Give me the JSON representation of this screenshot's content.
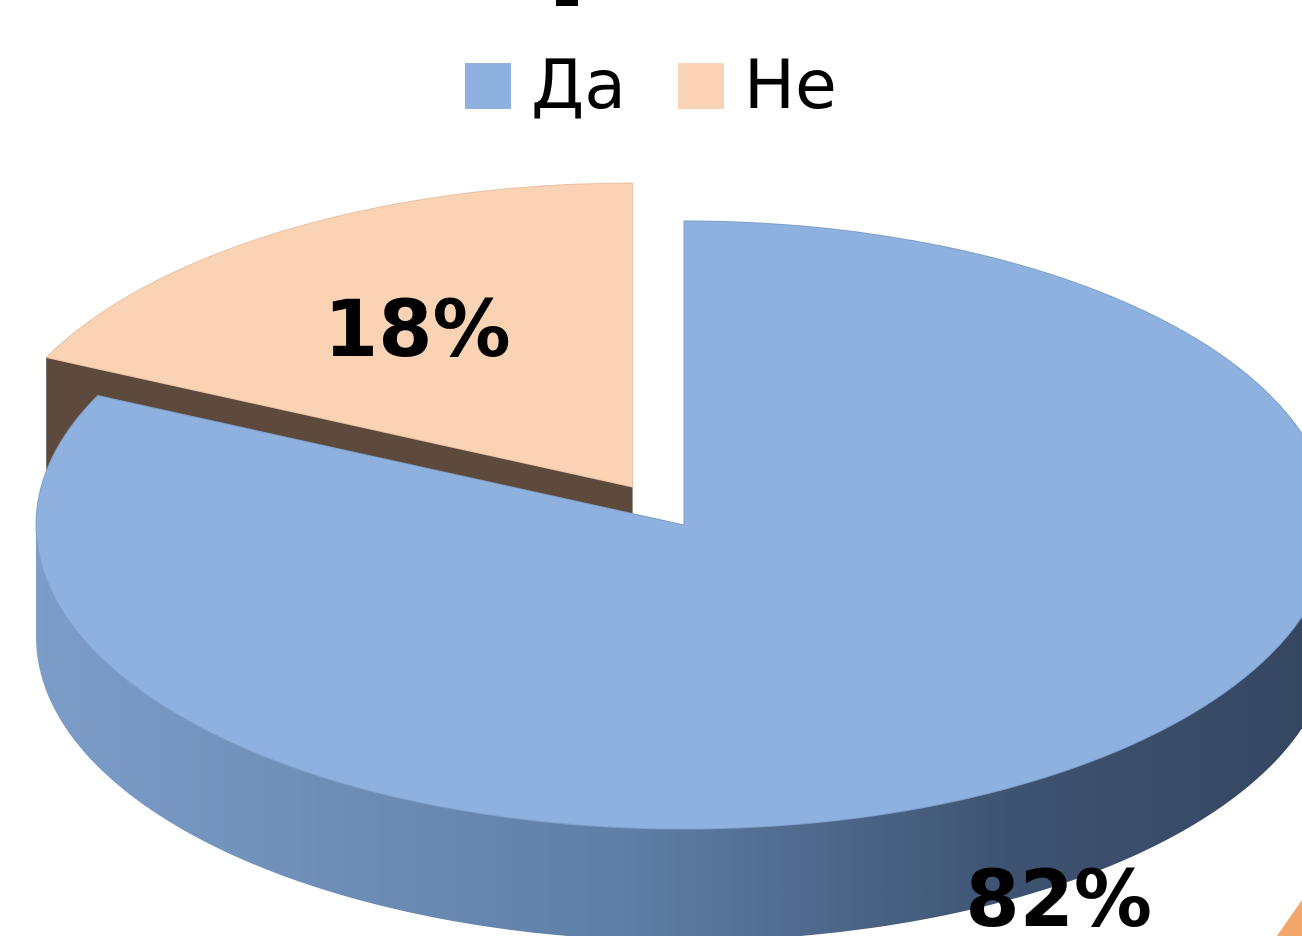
{
  "chart_data": {
    "type": "pie",
    "is_3d": true,
    "exploded": true,
    "legend_position": "top",
    "categories": [
      "Да",
      "Не"
    ],
    "values": [
      82,
      18
    ],
    "data_labels": [
      "82%",
      "18%"
    ],
    "colors": [
      "#8EB1DF",
      "#F9D3B4"
    ]
  }
}
